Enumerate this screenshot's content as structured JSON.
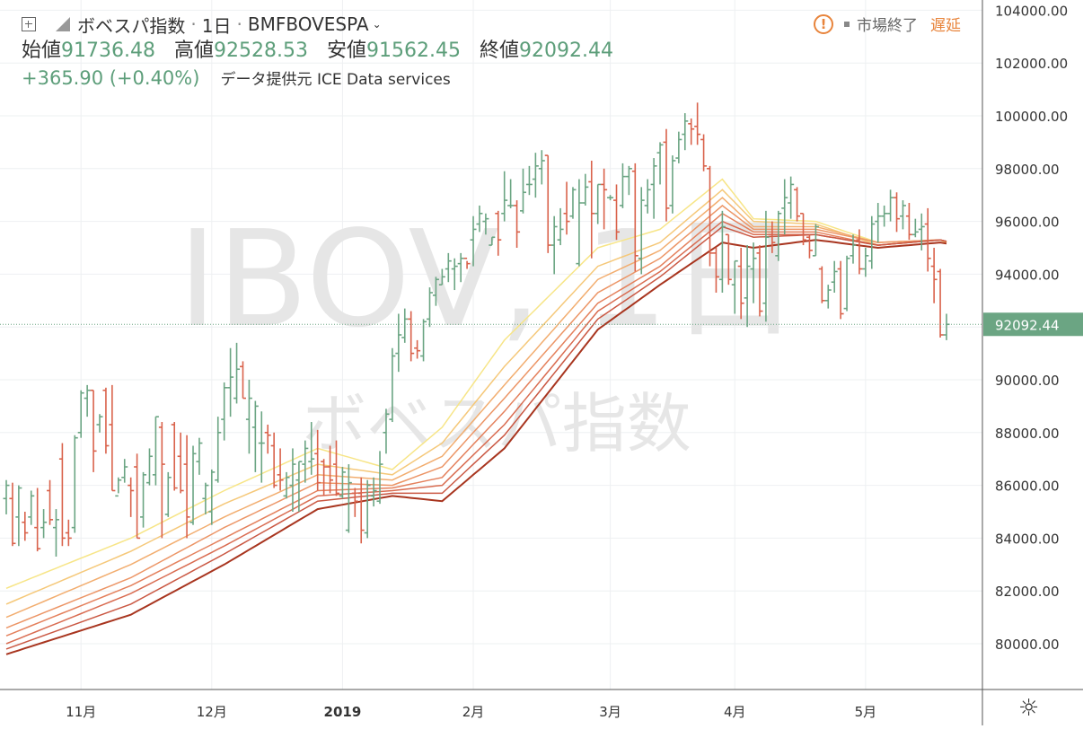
{
  "header": {
    "symbol_name": "ボベスパ指数",
    "interval": "1日",
    "exchange_symbol": "BMFBOVESPA",
    "ohlc": [
      {
        "label": "始値",
        "value": "91736.48"
      },
      {
        "label": "高値",
        "value": "92528.53"
      },
      {
        "label": "安値",
        "value": "91562.45"
      },
      {
        "label": "終値",
        "value": "92092.44"
      }
    ],
    "change": "+365.90 (+0.40%)",
    "data_source": "データ提供元 ICE Data services"
  },
  "status": {
    "market_closed": "市場終了",
    "delayed": "遅延",
    "warning_symbol": "!"
  },
  "watermark": {
    "line1": "IBOV, 1日",
    "line2": "ボベスパ指数"
  },
  "last_price_label": "92092.44",
  "colors": {
    "up": "#6ba583",
    "down": "#d9624b",
    "last_price_bg": "#6ba583",
    "ribbon": [
      "#f7e587",
      "#f5c879",
      "#f2ad6f",
      "#ec9566",
      "#e4805c",
      "#d96c51",
      "#ca5843",
      "#a8351f"
    ]
  },
  "chart_data": {
    "type": "ohlc",
    "title": "",
    "y_ticks": [
      "80000.00",
      "82000.00",
      "84000.00",
      "86000.00",
      "88000.00",
      "90000.00",
      "92000.00",
      "94000.00",
      "96000.00",
      "98000.00",
      "100000.00",
      "102000.00",
      "104000.00"
    ],
    "ylim": [
      78000,
      104500
    ],
    "x_ticks": [
      "11月",
      "12月",
      "2019",
      "2月",
      "3月",
      "4月",
      "5月"
    ],
    "bars_ohlc": [
      [
        85500,
        86200,
        84900,
        86000
      ],
      [
        85500,
        86100,
        83700,
        83800
      ],
      [
        84800,
        86000,
        83700,
        85900
      ],
      [
        84600,
        85000,
        83900,
        84200
      ],
      [
        84800,
        85800,
        84500,
        85600
      ],
      [
        84400,
        85900,
        83500,
        83600
      ],
      [
        84400,
        85100,
        84000,
        84600
      ],
      [
        85800,
        86200,
        84500,
        84700
      ],
      [
        84400,
        85100,
        83300,
        84700
      ],
      [
        87000,
        87600,
        83700,
        84000
      ],
      [
        84200,
        84700,
        83700,
        84000
      ],
      [
        84400,
        87900,
        84200,
        87800
      ],
      [
        88000,
        89600,
        87800,
        89500
      ],
      [
        89300,
        89800,
        88600,
        89600
      ],
      [
        89600,
        89600,
        86500,
        87300
      ],
      [
        88300,
        88700,
        88000,
        88600
      ],
      [
        89600,
        89700,
        87200,
        87500
      ],
      [
        88300,
        89800,
        85800,
        85800
      ],
      [
        85600,
        86300,
        85700,
        86200
      ],
      [
        86300,
        87000,
        86100,
        86700
      ],
      [
        86000,
        86300,
        84800,
        85800
      ],
      [
        86700,
        87200,
        84000,
        84000
      ],
      [
        84800,
        86500,
        84400,
        86400
      ],
      [
        86100,
        87400,
        86000,
        87100
      ],
      [
        86400,
        88600,
        86000,
        88600
      ],
      [
        88200,
        88400,
        84000,
        86800
      ],
      [
        84900,
        86500,
        84800,
        86300
      ],
      [
        88300,
        88400,
        85800,
        85900
      ],
      [
        87100,
        88000,
        85700,
        85800
      ],
      [
        86800,
        87900,
        84000,
        84800
      ],
      [
        84600,
        87500,
        84500,
        87200
      ],
      [
        86900,
        87800,
        86400,
        87600
      ],
      [
        85500,
        86100,
        84900,
        86000
      ],
      [
        85000,
        86600,
        84500,
        86500
      ],
      [
        86200,
        88600,
        86100,
        88000
      ],
      [
        88500,
        89900,
        87700,
        89700
      ],
      [
        89700,
        91200,
        88600,
        90100
      ],
      [
        89300,
        91400,
        89100,
        90400
      ],
      [
        90500,
        90700,
        89300,
        89300
      ],
      [
        88500,
        90000,
        87200,
        89300
      ],
      [
        88200,
        89200,
        86500,
        89000
      ],
      [
        87600,
        88800,
        86100,
        87600
      ],
      [
        88000,
        88300,
        87200,
        87900
      ],
      [
        87500,
        88000,
        85900,
        86000
      ],
      [
        86400,
        87400,
        85800,
        86200
      ],
      [
        85600,
        86500,
        85500,
        86300
      ],
      [
        86000,
        87400,
        85000,
        86800
      ],
      [
        86200,
        86900,
        85000,
        86900
      ],
      [
        86800,
        87700,
        86100,
        87400
      ],
      [
        86900,
        88400,
        86400,
        87000
      ],
      [
        87200,
        88100,
        85800,
        86100
      ],
      [
        86900,
        87000,
        85600,
        86700
      ],
      [
        86700,
        87500,
        85700,
        86200
      ],
      [
        86800,
        87700,
        85600,
        85700
      ],
      [
        85600,
        86700,
        85500,
        86500
      ],
      [
        84300,
        86800,
        84200,
        86100
      ],
      [
        85700,
        85900,
        84800,
        85400
      ],
      [
        85700,
        86300,
        83800,
        84300
      ],
      [
        84200,
        86200,
        84000,
        86000
      ],
      [
        85600,
        86300,
        85200,
        85800
      ],
      [
        85400,
        87300,
        85300,
        86800
      ],
      [
        88000,
        88900,
        87200,
        88700
      ],
      [
        88500,
        91200,
        88400,
        90900
      ],
      [
        91000,
        92500,
        90300,
        91700
      ],
      [
        91600,
        92700,
        91400,
        92300
      ],
      [
        92300,
        92600,
        90700,
        91000
      ],
      [
        91200,
        91500,
        90800,
        91100
      ],
      [
        90900,
        92300,
        90700,
        92200
      ],
      [
        92300,
        93500,
        92000,
        93300
      ],
      [
        93200,
        93900,
        92800,
        93800
      ],
      [
        93600,
        94200,
        93600,
        93900
      ],
      [
        94200,
        94800,
        93700,
        94500
      ],
      [
        94200,
        94600,
        93400,
        94300
      ],
      [
        94400,
        94800,
        93700,
        94600
      ],
      [
        94600,
        94500,
        94200,
        94400
      ],
      [
        95300,
        96200,
        94300,
        95700
      ],
      [
        95900,
        96600,
        95600,
        96300
      ],
      [
        96000,
        96300,
        95500,
        96100
      ],
      [
        95100,
        95400,
        95100,
        95400
      ],
      [
        96300,
        96400,
        94700,
        95300
      ],
      [
        96300,
        97900,
        96000,
        96800
      ],
      [
        96600,
        97600,
        96500,
        96600
      ],
      [
        96600,
        96800,
        95000,
        95600
      ],
      [
        96400,
        98000,
        96300,
        97100
      ],
      [
        97400,
        98100,
        97000,
        97400
      ],
      [
        97600,
        98600,
        96900,
        98100
      ],
      [
        98000,
        98700,
        97400,
        98300
      ],
      [
        98500,
        98500,
        94800,
        95100
      ],
      [
        95100,
        96200,
        94000,
        95800
      ],
      [
        95300,
        96500,
        95100,
        95700
      ],
      [
        96300,
        97500,
        95500,
        96000
      ],
      [
        96200,
        97300,
        96100,
        97200
      ],
      [
        94400,
        97600,
        94300,
        96700
      ],
      [
        96700,
        97800,
        96600,
        97300
      ],
      [
        97500,
        98300,
        94600,
        96300
      ],
      [
        96300,
        97400,
        95900,
        97400
      ],
      [
        97400,
        98000,
        95700,
        97200
      ],
      [
        96900,
        97000,
        96800,
        96900
      ],
      [
        96800,
        97400,
        95300,
        95600
      ],
      [
        96600,
        98200,
        96500,
        97700
      ],
      [
        97700,
        98100,
        97000,
        98000
      ],
      [
        97900,
        98200,
        94100,
        94700
      ],
      [
        94600,
        97300,
        94000,
        96800
      ],
      [
        96600,
        97600,
        96300,
        97200
      ],
      [
        97400,
        98400,
        96100,
        98100
      ],
      [
        98600,
        99000,
        97400,
        98900
      ],
      [
        99000,
        99500,
        96000,
        96500
      ],
      [
        96600,
        98500,
        96300,
        98300
      ],
      [
        98400,
        99400,
        98200,
        99100
      ],
      [
        99300,
        100100,
        98700,
        99800
      ],
      [
        99700,
        99900,
        98900,
        99500
      ],
      [
        99600,
        100500,
        98900,
        99300
      ],
      [
        99100,
        99300,
        97900,
        98100
      ],
      [
        98000,
        98100,
        94300,
        94800
      ],
      [
        94800,
        95000,
        93300,
        93900
      ],
      [
        93800,
        96400,
        93300,
        95800
      ],
      [
        95500,
        95500,
        93600,
        93800
      ],
      [
        93600,
        94500,
        92500,
        94500
      ],
      [
        94300,
        95000,
        92300,
        92900
      ],
      [
        93100,
        95100,
        92000,
        94300
      ],
      [
        94200,
        95200,
        92900,
        94600
      ],
      [
        94800,
        95100,
        92400,
        92600
      ],
      [
        92900,
        96400,
        92200,
        95400
      ],
      [
        95500,
        96000,
        94800,
        95200
      ],
      [
        94700,
        96400,
        94500,
        96300
      ],
      [
        96500,
        97600,
        95500,
        96900
      ],
      [
        96700,
        97700,
        96100,
        97400
      ],
      [
        97200,
        97300,
        96000,
        96200
      ],
      [
        96300,
        96300,
        95100,
        95300
      ],
      [
        95400,
        95500,
        94600,
        94900
      ],
      [
        94700,
        95900,
        94700,
        95800
      ],
      [
        94200,
        94300,
        92900,
        93000
      ],
      [
        93000,
        93600,
        92700,
        93400
      ],
      [
        93700,
        94500,
        93300,
        94100
      ],
      [
        94200,
        94500,
        92300,
        92500
      ],
      [
        92700,
        94700,
        92600,
        94600
      ],
      [
        94700,
        95500,
        94400,
        95100
      ],
      [
        95300,
        95700,
        94000,
        94200
      ],
      [
        94200,
        95000,
        93900,
        94700
      ],
      [
        94500,
        96200,
        94200,
        95900
      ],
      [
        96000,
        96700,
        95200,
        96200
      ],
      [
        96200,
        96600,
        95800,
        96300
      ],
      [
        96300,
        97200,
        96000,
        96900
      ],
      [
        96900,
        97100,
        95600,
        96100
      ],
      [
        96200,
        96800,
        95700,
        96600
      ],
      [
        96200,
        96700,
        95300,
        95500
      ],
      [
        95500,
        96100,
        95400,
        95600
      ],
      [
        95700,
        96300,
        94900,
        95800
      ],
      [
        95900,
        96500,
        94100,
        94600
      ],
      [
        94300,
        95000,
        92900,
        93800
      ],
      [
        94100,
        94200,
        91600,
        91700
      ],
      [
        91700,
        92500,
        91500,
        92100
      ]
    ],
    "ribbon_description": "8 moving averages (ribbon) in yellow-to-dark-red, read from the chart",
    "ribbon_ma_anchors": [
      [
        [
          0,
          82100
        ],
        [
          20,
          84000
        ],
        [
          35,
          85800
        ],
        [
          50,
          87400
        ],
        [
          62,
          86600
        ],
        [
          70,
          88200
        ],
        [
          80,
          91500
        ],
        [
          95,
          95000
        ],
        [
          105,
          95700
        ],
        [
          115,
          97600
        ],
        [
          120,
          96100
        ],
        [
          130,
          96000
        ],
        [
          140,
          95200
        ],
        [
          150,
          95300
        ],
        [
          155,
          94700
        ]
      ],
      [
        [
          0,
          81500
        ],
        [
          20,
          83500
        ],
        [
          35,
          85300
        ],
        [
          50,
          86800
        ],
        [
          62,
          86400
        ],
        [
          70,
          87600
        ],
        [
          80,
          90500
        ],
        [
          95,
          94300
        ],
        [
          105,
          95200
        ],
        [
          115,
          97200
        ],
        [
          120,
          96000
        ],
        [
          130,
          95900
        ],
        [
          140,
          95100
        ],
        [
          150,
          95300
        ],
        [
          155,
          94800
        ]
      ],
      [
        [
          0,
          81000
        ],
        [
          20,
          83000
        ],
        [
          35,
          84800
        ],
        [
          50,
          86400
        ],
        [
          62,
          86200
        ],
        [
          70,
          87100
        ],
        [
          80,
          89800
        ],
        [
          95,
          93800
        ],
        [
          105,
          94900
        ],
        [
          115,
          96900
        ],
        [
          120,
          95800
        ],
        [
          130,
          95800
        ],
        [
          140,
          95200
        ],
        [
          150,
          95300
        ],
        [
          155,
          94900
        ]
      ],
      [
        [
          0,
          80600
        ],
        [
          20,
          82500
        ],
        [
          35,
          84400
        ],
        [
          50,
          86100
        ],
        [
          62,
          86000
        ],
        [
          70,
          86700
        ],
        [
          80,
          89300
        ],
        [
          95,
          93300
        ],
        [
          105,
          94600
        ],
        [
          115,
          96600
        ],
        [
          120,
          95700
        ],
        [
          130,
          95700
        ],
        [
          140,
          95200
        ],
        [
          150,
          95300
        ],
        [
          155,
          95000
        ]
      ],
      [
        [
          0,
          80300
        ],
        [
          20,
          82200
        ],
        [
          35,
          84000
        ],
        [
          50,
          85800
        ],
        [
          62,
          85900
        ],
        [
          70,
          86300
        ],
        [
          80,
          88800
        ],
        [
          95,
          92900
        ],
        [
          105,
          94300
        ],
        [
          115,
          96300
        ],
        [
          120,
          95600
        ],
        [
          130,
          95600
        ],
        [
          140,
          95100
        ],
        [
          150,
          95300
        ],
        [
          155,
          95000
        ]
      ],
      [
        [
          0,
          80000
        ],
        [
          20,
          81900
        ],
        [
          35,
          83700
        ],
        [
          50,
          85600
        ],
        [
          62,
          85800
        ],
        [
          70,
          86000
        ],
        [
          80,
          88300
        ],
        [
          95,
          92600
        ],
        [
          105,
          94100
        ],
        [
          115,
          96000
        ],
        [
          120,
          95500
        ],
        [
          130,
          95500
        ],
        [
          140,
          95100
        ],
        [
          150,
          95300
        ],
        [
          155,
          95000
        ]
      ],
      [
        [
          0,
          79800
        ],
        [
          20,
          81500
        ],
        [
          35,
          83400
        ],
        [
          50,
          85400
        ],
        [
          62,
          85700
        ],
        [
          70,
          85700
        ],
        [
          80,
          87900
        ],
        [
          95,
          92300
        ],
        [
          105,
          93900
        ],
        [
          115,
          95800
        ],
        [
          120,
          95400
        ],
        [
          130,
          95500
        ],
        [
          140,
          95100
        ],
        [
          150,
          95300
        ],
        [
          155,
          95000
        ]
      ],
      [
        [
          0,
          79600
        ],
        [
          20,
          81100
        ],
        [
          35,
          83000
        ],
        [
          50,
          85100
        ],
        [
          62,
          85600
        ],
        [
          70,
          85400
        ],
        [
          80,
          87400
        ],
        [
          95,
          91900
        ],
        [
          105,
          93600
        ],
        [
          115,
          95200
        ],
        [
          120,
          95000
        ],
        [
          130,
          95300
        ],
        [
          140,
          95000
        ],
        [
          150,
          95200
        ],
        [
          155,
          95000
        ]
      ]
    ]
  }
}
